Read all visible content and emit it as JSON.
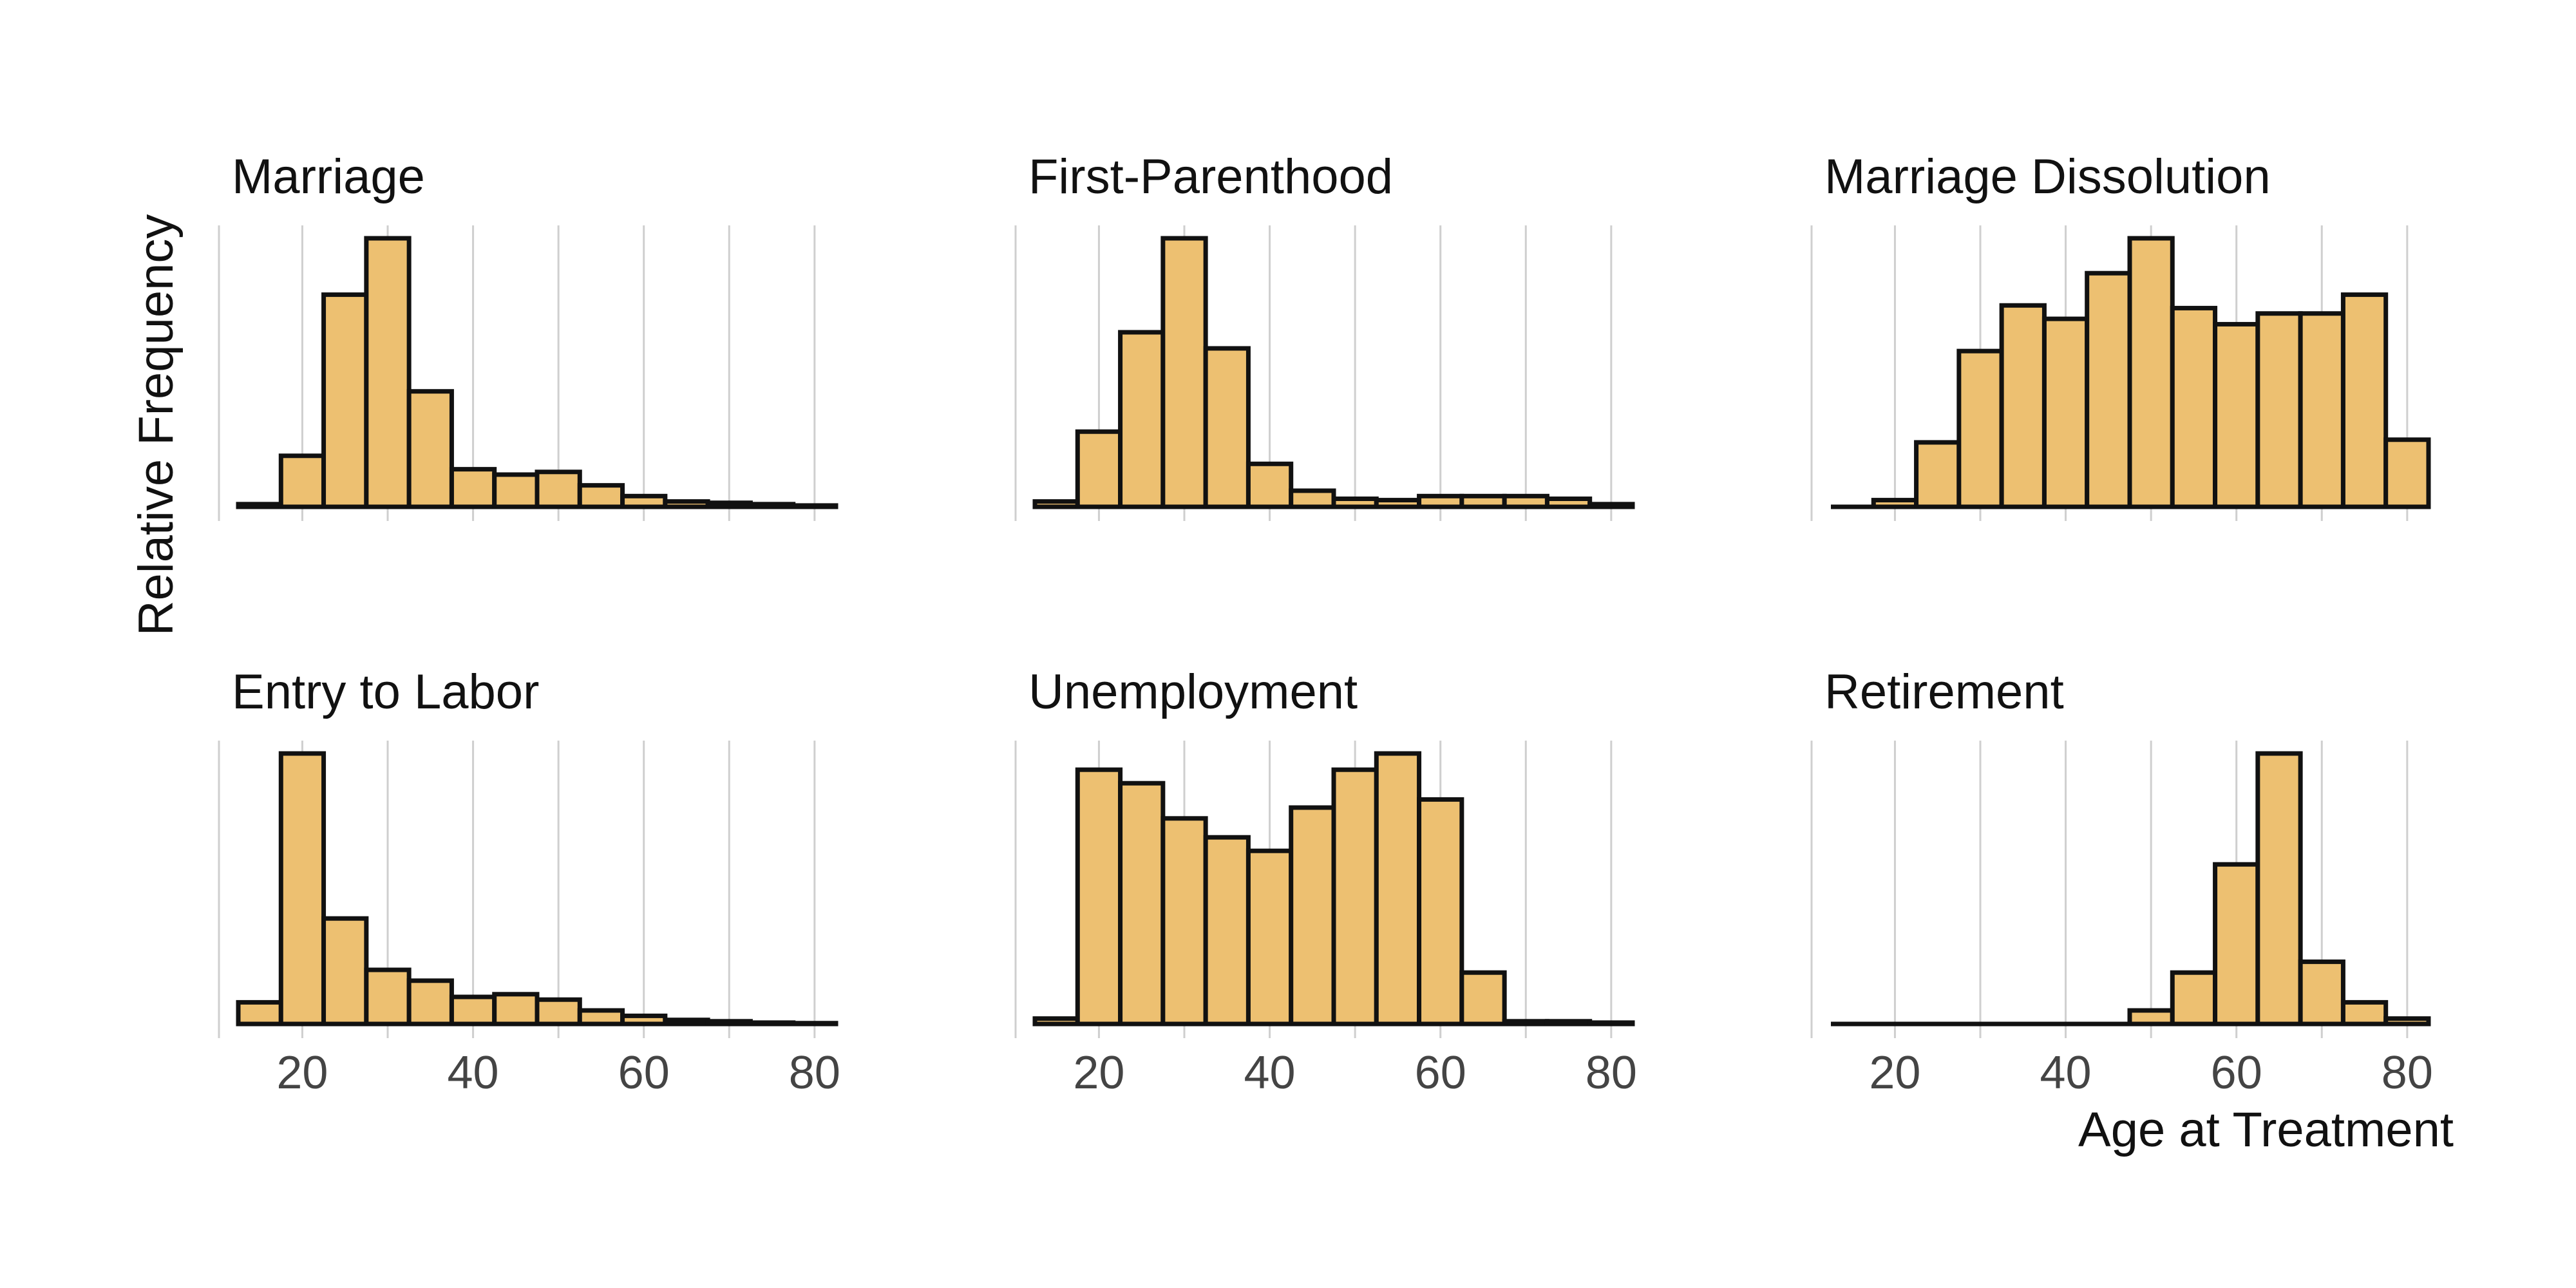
{
  "chart_data": {
    "type": "bar",
    "xlabel": "Age at Treatment",
    "ylabel": "Relative Frequency",
    "xlim": [
      12.5,
      82.5
    ],
    "bin_width": 5,
    "x_ticks": [
      20,
      40,
      60,
      80
    ],
    "grid": "vertical",
    "bar_color": "#EDC071",
    "bar_edge_color": "#111111",
    "panels": [
      {
        "title": "Marriage",
        "bins": [
          12.5,
          17.5,
          22.5,
          27.5,
          32.5,
          37.5,
          42.5,
          47.5,
          52.5,
          57.5,
          62.5,
          67.5,
          72.5,
          77.5
        ],
        "values": [
          0.01,
          0.19,
          0.79,
          1.0,
          0.43,
          0.14,
          0.12,
          0.13,
          0.08,
          0.04,
          0.02,
          0.015,
          0.01,
          0.005
        ]
      },
      {
        "title": "First-Parenthood",
        "bins": [
          12.5,
          17.5,
          22.5,
          27.5,
          32.5,
          37.5,
          42.5,
          47.5,
          52.5,
          57.5,
          62.5,
          67.5,
          72.5,
          77.5
        ],
        "values": [
          0.02,
          0.28,
          0.65,
          1.0,
          0.59,
          0.16,
          0.06,
          0.03,
          0.025,
          0.04,
          0.04,
          0.04,
          0.03,
          0.01
        ]
      },
      {
        "title": "Marriage Dissolution",
        "bins": [
          12.5,
          17.5,
          22.5,
          27.5,
          32.5,
          37.5,
          42.5,
          47.5,
          52.5,
          57.5,
          62.5,
          67.5,
          72.5,
          77.5
        ],
        "values": [
          0.0,
          0.025,
          0.24,
          0.58,
          0.75,
          0.7,
          0.87,
          1.0,
          0.74,
          0.68,
          0.72,
          0.72,
          0.79,
          0.25
        ]
      },
      {
        "title": "Entry to Labor",
        "bins": [
          12.5,
          17.5,
          22.5,
          27.5,
          32.5,
          37.5,
          42.5,
          47.5,
          52.5,
          57.5,
          62.5,
          67.5,
          72.5,
          77.5
        ],
        "values": [
          0.08,
          1.0,
          0.39,
          0.2,
          0.16,
          0.1,
          0.11,
          0.09,
          0.05,
          0.03,
          0.015,
          0.01,
          0.005,
          0.003
        ]
      },
      {
        "title": "Unemployment",
        "bins": [
          12.5,
          17.5,
          22.5,
          27.5,
          32.5,
          37.5,
          42.5,
          47.5,
          52.5,
          57.5,
          62.5,
          67.5,
          72.5,
          77.5
        ],
        "values": [
          0.02,
          0.94,
          0.89,
          0.76,
          0.69,
          0.64,
          0.8,
          0.94,
          1.0,
          0.83,
          0.19,
          0.01,
          0.01,
          0.005
        ]
      },
      {
        "title": "Retirement",
        "bins": [
          12.5,
          17.5,
          22.5,
          27.5,
          32.5,
          37.5,
          42.5,
          47.5,
          52.5,
          57.5,
          62.5,
          67.5,
          72.5,
          77.5
        ],
        "values": [
          0.0,
          0.0,
          0.0,
          0.0,
          0.0,
          0.0,
          0.0,
          0.05,
          0.19,
          0.59,
          1.0,
          0.23,
          0.08,
          0.02
        ]
      }
    ]
  }
}
